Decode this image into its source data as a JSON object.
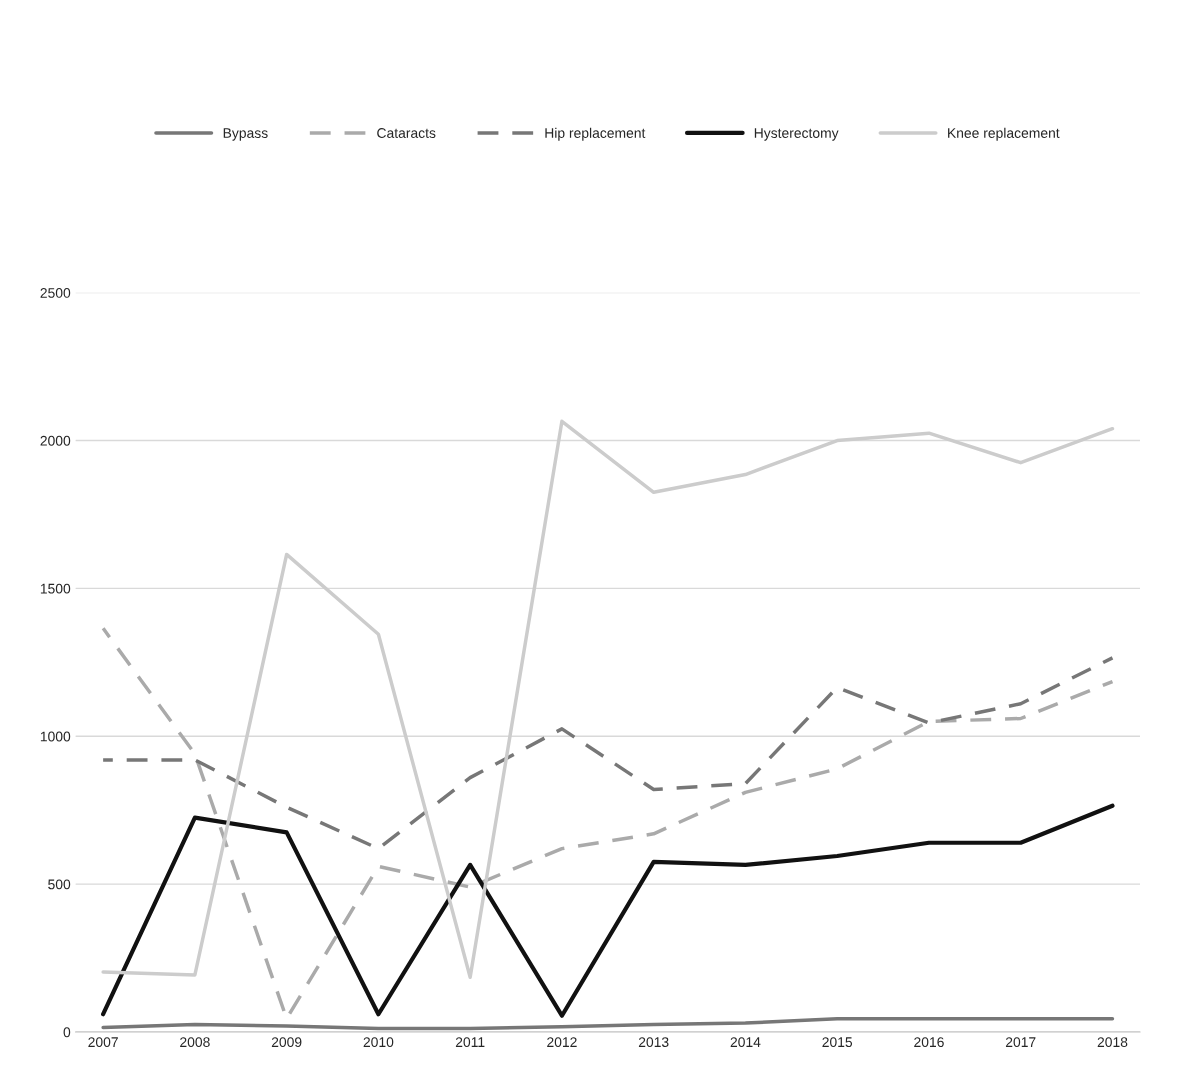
{
  "chart_data": {
    "type": "line",
    "categories": [
      "2007",
      "2008",
      "2009",
      "2010",
      "2011",
      "2012",
      "2013",
      "2014",
      "2015",
      "2016",
      "2017",
      "2018"
    ],
    "series": [
      {
        "name": "Bypass",
        "color": "#777777",
        "line_style": "solid",
        "values": [
          15,
          25,
          20,
          12,
          12,
          18,
          25,
          30,
          45,
          45,
          45,
          45
        ]
      },
      {
        "name": "Cataracts",
        "color": "#aaaaaa",
        "line_style": "dashed",
        "values": [
          1365,
          940,
          45,
          560,
          490,
          620,
          670,
          810,
          890,
          1050,
          1060,
          1185
        ]
      },
      {
        "name": "Hip replacement",
        "color": "#777777",
        "line_style": "dashed",
        "values": [
          920,
          920,
          760,
          620,
          860,
          1025,
          820,
          840,
          1165,
          1045,
          1110,
          1265
        ]
      },
      {
        "name": "Hysterectomy",
        "color": "#111111",
        "line_style": "solid",
        "values": [
          60,
          725,
          675,
          60,
          565,
          55,
          575,
          565,
          595,
          640,
          640,
          765
        ]
      },
      {
        "name": "Knee replacement",
        "color": "#cccccc",
        "line_style": "solid",
        "values": [
          203,
          193,
          1615,
          1345,
          185,
          2065,
          1825,
          1885,
          2000,
          2025,
          1925,
          2040
        ]
      }
    ],
    "ylim": [
      0,
      2500
    ],
    "yticks": [
      0,
      500,
      1000,
      1500,
      2000,
      2500
    ],
    "grid": "y",
    "legend": "top",
    "marker": "none"
  }
}
